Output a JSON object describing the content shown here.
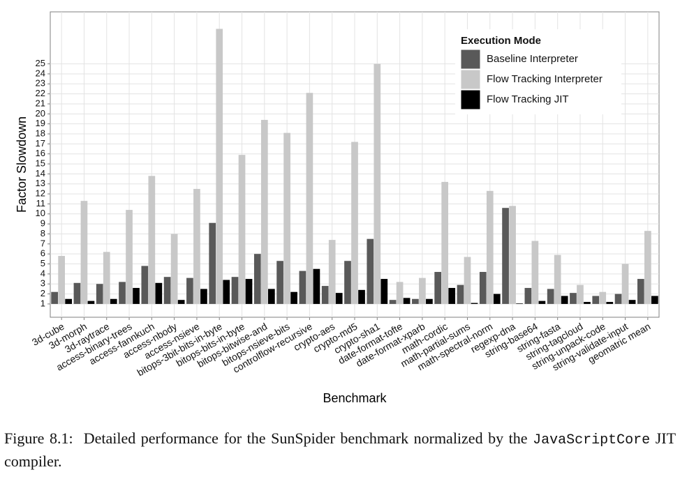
{
  "chart_data": {
    "type": "bar",
    "x_label": "Benchmark",
    "y_label": "Factor Slowdown",
    "legend_title": "Execution Mode",
    "legend": "upper right",
    "categories": [
      "3d-cube",
      "3d-morph",
      "3d-raytrace",
      "access-binary-trees",
      "access-fannkuch",
      "access-nbody",
      "access-nsieve",
      "bitops-3bit-bits-in-byte",
      "bitops-bits-in-byte",
      "bitops-bitwise-and",
      "bitops-nsieve-bits",
      "controlflow-recursive",
      "crypto-aes",
      "crypto-md5",
      "crypto-sha1",
      "date-format-tofte",
      "date-format-xparb",
      "math-cordic",
      "math-partial-sums",
      "math-spectral-norm",
      "regexp-dna",
      "string-base64",
      "string-fasta",
      "string-tagcloud",
      "string-unpack-code",
      "string-validate-input",
      "geomatric mean"
    ],
    "series": [
      {
        "name": "Baseline Interpreter",
        "color": "#595959",
        "values": [
          2.2,
          3.1,
          3.0,
          3.2,
          4.8,
          3.7,
          3.6,
          9.1,
          3.7,
          6.0,
          5.3,
          4.3,
          2.8,
          5.3,
          7.5,
          1.4,
          1.5,
          4.2,
          2.9,
          4.2,
          10.6,
          2.6,
          2.5,
          2.1,
          1.8,
          2.0,
          3.5
        ]
      },
      {
        "name": "Flow Tracking Interpreter",
        "color": "#c8c8c8",
        "values": [
          5.8,
          11.3,
          6.2,
          10.4,
          13.8,
          8.0,
          12.5,
          28.5,
          15.9,
          19.4,
          18.1,
          22.1,
          7.4,
          17.2,
          25.0,
          3.2,
          3.6,
          13.2,
          5.7,
          12.3,
          10.8,
          7.3,
          5.9,
          2.9,
          2.2,
          5.0,
          8.3
        ]
      },
      {
        "name": "Flow Tracking JIT",
        "color": "#000000",
        "values": [
          1.5,
          1.3,
          1.5,
          2.6,
          3.1,
          1.4,
          2.5,
          3.4,
          3.5,
          2.5,
          2.2,
          4.5,
          2.1,
          2.4,
          3.5,
          1.6,
          1.5,
          2.6,
          1.1,
          2.0,
          1.05,
          1.3,
          1.8,
          1.2,
          1.2,
          1.4,
          1.8
        ]
      }
    ],
    "bar_base": 1,
    "ylim": [
      -0.33,
      30.2
    ],
    "yticks": [
      1,
      2,
      3,
      4,
      5,
      6,
      7,
      8,
      9,
      10,
      11,
      12,
      13,
      14,
      15,
      16,
      17,
      18,
      19,
      20,
      21,
      22,
      23,
      24,
      25
    ],
    "grid": true
  },
  "figure_caption": {
    "label": "Figure 8.1:",
    "text": "Detailed performance for the SunSpider benchmark normalized by the",
    "code": "JavaScriptCore",
    "end": "JIT compiler."
  }
}
